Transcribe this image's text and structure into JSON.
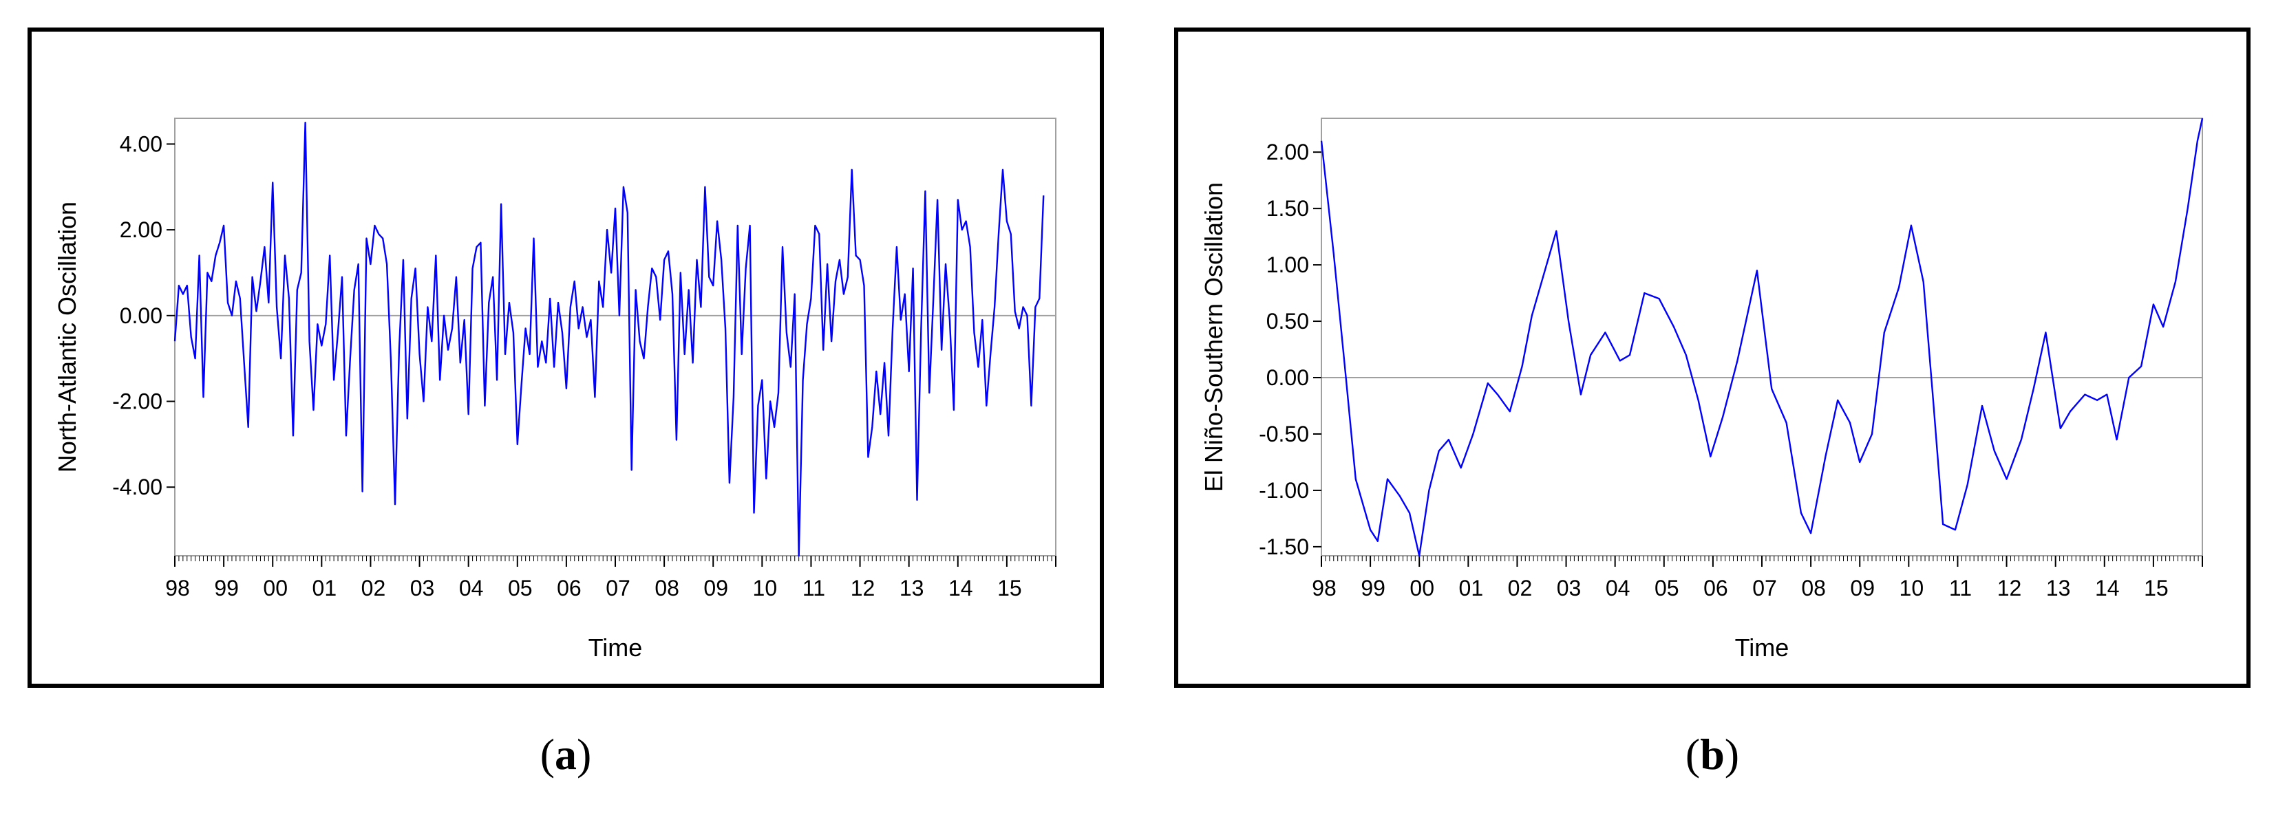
{
  "chart_data": [
    {
      "type": "line",
      "panel": "(a)",
      "ylabel": "North-Atlantic Oscillation",
      "xlabel": "Time",
      "ylim": [
        -5.6,
        4.6
      ],
      "yticks": [
        4.0,
        2.0,
        0.0,
        -2.0,
        -4.0
      ],
      "ytick_labels": [
        "4.00",
        "2.00",
        "0.00",
        "-2.00",
        "-4.00"
      ],
      "xlim": [
        1998,
        2016
      ],
      "xtick_labels": [
        "98",
        "99",
        "00",
        "01",
        "02",
        "03",
        "04",
        "05",
        "06",
        "07",
        "08",
        "09",
        "10",
        "11",
        "12",
        "13",
        "14",
        "15"
      ],
      "zero_line": true,
      "color": "#0000ff",
      "series": [
        {
          "x_start": 1998,
          "step_months": 1,
          "values": [
            -0.6,
            0.7,
            0.5,
            0.7,
            -0.5,
            -1.0,
            1.4,
            -1.9,
            1.0,
            0.8,
            1.4,
            1.7,
            2.1,
            0.3,
            0.0,
            0.8,
            0.4,
            -1.1,
            -2.6,
            0.9,
            0.1,
            0.8,
            1.6,
            0.3,
            3.1,
            0.2,
            -1.0,
            1.4,
            0.4,
            -2.8,
            0.6,
            1.0,
            4.5,
            -0.6,
            -2.2,
            -0.2,
            -0.7,
            -0.2,
            1.4,
            -1.5,
            -0.4,
            0.9,
            -2.8,
            -1.0,
            0.6,
            1.2,
            -4.1,
            1.8,
            1.2,
            2.1,
            1.9,
            1.8,
            1.2,
            -1.1,
            -4.4,
            -0.8,
            1.3,
            -2.4,
            0.4,
            1.1,
            -0.9,
            -2.0,
            0.2,
            -0.6,
            1.4,
            -1.5,
            0.0,
            -0.8,
            -0.3,
            0.9,
            -1.1,
            -0.1,
            -2.3,
            1.1,
            1.6,
            1.7,
            -2.1,
            0.3,
            0.9,
            -1.5,
            2.6,
            -0.9,
            0.3,
            -0.4,
            -3.0,
            -1.6,
            -0.3,
            -0.9,
            1.8,
            -1.2,
            -0.6,
            -1.1,
            0.4,
            -1.2,
            0.3,
            -0.4,
            -1.7,
            0.2,
            0.8,
            -0.3,
            0.2,
            -0.5,
            -0.1,
            -1.9,
            0.8,
            0.2,
            2.0,
            1.0,
            2.5,
            0.0,
            3.0,
            2.4,
            -3.6,
            0.6,
            -0.6,
            -1.0,
            0.2,
            1.1,
            0.9,
            -0.1,
            1.3,
            1.5,
            0.5,
            -2.9,
            1.0,
            -0.9,
            0.6,
            -1.1,
            1.3,
            0.2,
            3.0,
            0.9,
            0.7,
            2.2,
            1.3,
            -0.3,
            -3.9,
            -1.9,
            2.1,
            -0.9,
            1.1,
            2.1,
            -4.6,
            -2.1,
            -1.5,
            -3.8,
            -2.0,
            -2.6,
            -1.8,
            1.6,
            -0.4,
            -1.2,
            0.5,
            -5.6,
            -1.5,
            -0.2,
            0.4,
            2.1,
            1.9,
            -0.8,
            1.2,
            -0.6,
            0.8,
            1.3,
            0.5,
            0.9,
            3.4,
            1.4,
            1.3,
            0.7,
            -3.3,
            -2.6,
            -1.3,
            -2.3,
            -1.1,
            -2.8,
            -0.3,
            1.6,
            -0.1,
            0.5,
            -1.3,
            1.1,
            -4.3,
            -0.3,
            2.9,
            -1.8,
            0.4,
            2.7,
            -0.8,
            1.2,
            -0.1,
            -2.2,
            2.7,
            2.0,
            2.2,
            1.6,
            -0.4,
            -1.2,
            -0.1,
            -2.1,
            -0.9,
            0.2,
            1.9,
            3.4,
            2.2,
            1.9,
            0.1,
            -0.3,
            0.2,
            0.0,
            -2.1,
            0.2,
            0.4,
            2.8
          ]
        }
      ]
    },
    {
      "type": "line",
      "panel": "(b)",
      "ylabel": "El Niño-Southern Oscillation",
      "xlabel": "Time",
      "ylim": [
        -1.58,
        2.3
      ],
      "yticks": [
        2.0,
        1.5,
        1.0,
        0.5,
        0.0,
        -0.5,
        -1.0,
        -1.5
      ],
      "ytick_labels": [
        "2.00",
        "1.50",
        "1.00",
        "0.50",
        "0.00",
        "-0.50",
        "-1.00",
        "-1.50"
      ],
      "xlim": [
        1998,
        2016
      ],
      "xtick_labels": [
        "98",
        "99",
        "00",
        "01",
        "02",
        "03",
        "04",
        "05",
        "06",
        "07",
        "08",
        "09",
        "10",
        "11",
        "12",
        "13",
        "14",
        "15"
      ],
      "zero_line": true,
      "color": "#0000ff",
      "series": [
        {
          "points": [
            [
              1998.0,
              2.1
            ],
            [
              1998.25,
              1.1
            ],
            [
              1998.5,
              0.0
            ],
            [
              1998.7,
              -0.9
            ],
            [
              1999.0,
              -1.35
            ],
            [
              1999.15,
              -1.45
            ],
            [
              1999.35,
              -0.9
            ],
            [
              1999.6,
              -1.05
            ],
            [
              1999.8,
              -1.2
            ],
            [
              2000.0,
              -1.58
            ],
            [
              2000.2,
              -1.0
            ],
            [
              2000.4,
              -0.65
            ],
            [
              2000.6,
              -0.55
            ],
            [
              2000.85,
              -0.8
            ],
            [
              2001.1,
              -0.5
            ],
            [
              2001.4,
              -0.05
            ],
            [
              2001.6,
              -0.15
            ],
            [
              2001.85,
              -0.3
            ],
            [
              2002.1,
              0.1
            ],
            [
              2002.3,
              0.55
            ],
            [
              2002.6,
              1.0
            ],
            [
              2002.8,
              1.3
            ],
            [
              2003.05,
              0.5
            ],
            [
              2003.3,
              -0.15
            ],
            [
              2003.5,
              0.2
            ],
            [
              2003.8,
              0.4
            ],
            [
              2004.1,
              0.15
            ],
            [
              2004.3,
              0.2
            ],
            [
              2004.6,
              0.75
            ],
            [
              2004.9,
              0.7
            ],
            [
              2005.2,
              0.45
            ],
            [
              2005.45,
              0.2
            ],
            [
              2005.7,
              -0.2
            ],
            [
              2005.95,
              -0.7
            ],
            [
              2006.2,
              -0.35
            ],
            [
              2006.5,
              0.15
            ],
            [
              2006.9,
              0.95
            ],
            [
              2007.2,
              -0.1
            ],
            [
              2007.5,
              -0.4
            ],
            [
              2007.8,
              -1.2
            ],
            [
              2008.0,
              -1.38
            ],
            [
              2008.3,
              -0.7
            ],
            [
              2008.55,
              -0.2
            ],
            [
              2008.8,
              -0.4
            ],
            [
              2009.0,
              -0.75
            ],
            [
              2009.25,
              -0.5
            ],
            [
              2009.5,
              0.4
            ],
            [
              2009.8,
              0.8
            ],
            [
              2010.05,
              1.35
            ],
            [
              2010.3,
              0.85
            ],
            [
              2010.5,
              -0.2
            ],
            [
              2010.7,
              -1.3
            ],
            [
              2010.95,
              -1.35
            ],
            [
              2011.2,
              -0.95
            ],
            [
              2011.5,
              -0.25
            ],
            [
              2011.75,
              -0.65
            ],
            [
              2012.0,
              -0.9
            ],
            [
              2012.3,
              -0.55
            ],
            [
              2012.55,
              -0.1
            ],
            [
              2012.8,
              0.4
            ],
            [
              2013.1,
              -0.45
            ],
            [
              2013.3,
              -0.3
            ],
            [
              2013.6,
              -0.15
            ],
            [
              2013.85,
              -0.2
            ],
            [
              2014.05,
              -0.15
            ],
            [
              2014.25,
              -0.55
            ],
            [
              2014.5,
              0.0
            ],
            [
              2014.75,
              0.1
            ],
            [
              2015.0,
              0.65
            ],
            [
              2015.2,
              0.45
            ],
            [
              2015.45,
              0.85
            ],
            [
              2015.7,
              1.5
            ],
            [
              2015.9,
              2.1
            ],
            [
              2016.0,
              2.3
            ]
          ]
        }
      ]
    }
  ],
  "captions": {
    "a": "a",
    "b": "b"
  }
}
